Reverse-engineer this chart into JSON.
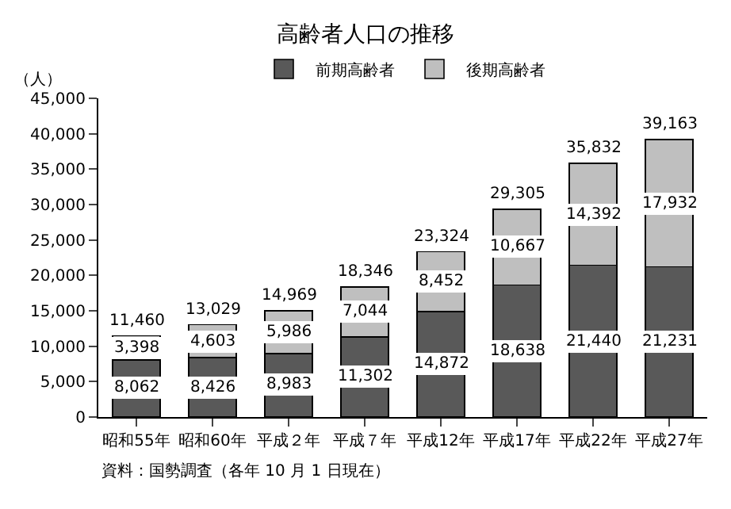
{
  "chart_data": {
    "type": "bar",
    "stacked": true,
    "title": "高齢者人口の推移",
    "ylabel": "（人）",
    "categories": [
      "昭和55年",
      "昭和60年",
      "平成２年",
      "平成７年",
      "平成12年",
      "平成17年",
      "平成22年",
      "平成27年"
    ],
    "series": [
      {
        "name": "前期高齢者",
        "color": "#595959",
        "values": [
          8062,
          8426,
          8983,
          11302,
          14872,
          18638,
          21440,
          21231
        ],
        "value_labels": [
          "8,062",
          "8,426",
          "8,983",
          "11,302",
          "14,872",
          "18,638",
          "21,440",
          "21,231"
        ]
      },
      {
        "name": "後期高齢者",
        "color": "#bfbfbf",
        "values": [
          3398,
          4603,
          5986,
          7044,
          8452,
          10667,
          14392,
          17932
        ],
        "value_labels": [
          "3,398",
          "4,603",
          "5,986",
          "7,044",
          "8,452",
          "10,667",
          "14,392",
          "17,932"
        ]
      }
    ],
    "totals": [
      "11,460",
      "13,029",
      "14,969",
      "18,346",
      "23,324",
      "29,305",
      "35,832",
      "39,163"
    ],
    "ylim": [
      0,
      45000
    ],
    "yticks": [
      {
        "value": 0,
        "label": "0"
      },
      {
        "value": 5000,
        "label": "5,000"
      },
      {
        "value": 10000,
        "label": "10,000"
      },
      {
        "value": 15000,
        "label": "15,000"
      },
      {
        "value": 20000,
        "label": "20,000"
      },
      {
        "value": 25000,
        "label": "25,000"
      },
      {
        "value": 30000,
        "label": "30,000"
      },
      {
        "value": 35000,
        "label": "35,000"
      },
      {
        "value": 40000,
        "label": "40,000"
      },
      {
        "value": 45000,
        "label": "45,000"
      }
    ],
    "legend": "top",
    "annotations": [
      "資料：国勢調査（各年 10 月 1 日現在）"
    ]
  }
}
